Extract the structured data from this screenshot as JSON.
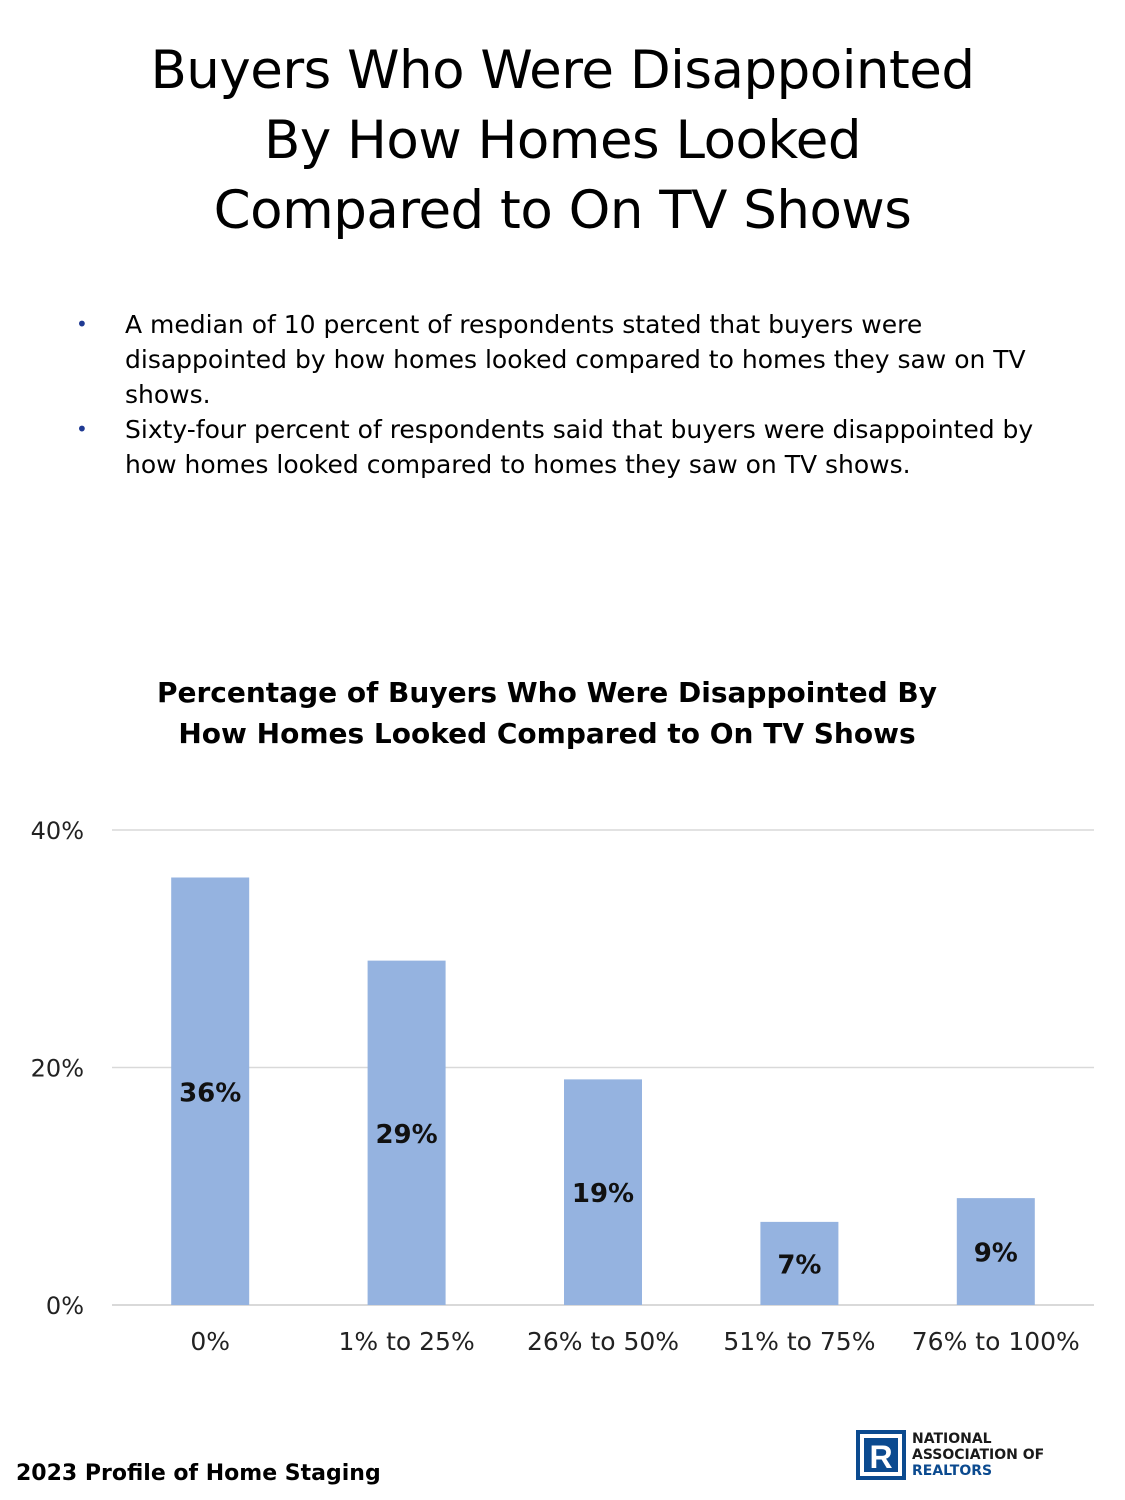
{
  "page": {
    "title": "Buyers Who Were Disappointed\nBy How Homes Looked\nCompared to On TV Shows",
    "bullets": [
      "A median of 10 percent of respondents stated that buyers were disappointed by how homes looked compared to homes they saw on TV shows.",
      "Sixty-four percent of respondents said that buyers were disappointed by how homes looked compared to homes they saw on TV shows."
    ],
    "footer": "2023 Profile of Home Staging",
    "logo": {
      "line1": "NATIONAL",
      "line2": "ASSOCIATION OF",
      "line3": "REALTORS",
      "mark": "R"
    }
  },
  "chart_data": {
    "type": "bar",
    "title": "Percentage of Buyers Who Were Disappointed By How Homes Looked Compared to On TV Shows",
    "categories": [
      "0%",
      "1% to 25%",
      "26% to 50%",
      "51% to 75%",
      "76% to 100%"
    ],
    "values": [
      36,
      29,
      19,
      7,
      9
    ],
    "data_labels": [
      "36%",
      "29%",
      "19%",
      "7%",
      "9%"
    ],
    "ylim": [
      0,
      40
    ],
    "yticks": [
      0,
      20,
      40
    ],
    "ytick_labels": [
      "0%",
      "20%",
      "40%"
    ],
    "xlabel": "",
    "ylabel": "",
    "grid": true,
    "legend": "none",
    "bar_color": "#95b3e0",
    "grid_color": "#d9d9d9"
  }
}
